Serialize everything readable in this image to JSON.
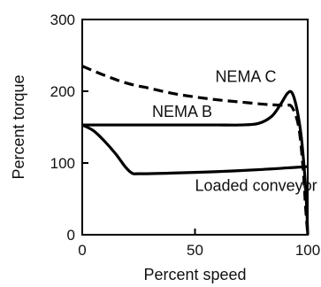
{
  "chart_data": {
    "type": "line",
    "xlabel": "Percent speed",
    "ylabel": "Percent torque",
    "xlim": [
      0,
      100
    ],
    "ylim": [
      0,
      300
    ],
    "x_ticks": [
      0,
      50,
      100
    ],
    "y_ticks": [
      0,
      100,
      200,
      300
    ],
    "grid": false,
    "legend": "none",
    "series": [
      {
        "key": "nema-c",
        "name": "NEMA C",
        "style": "dashed",
        "color": "#000000",
        "x": [
          0,
          10,
          20,
          30,
          40,
          50,
          60,
          70,
          80,
          85,
          90,
          93,
          96,
          98,
          99,
          100
        ],
        "y": [
          235,
          222,
          211,
          204,
          197,
          192,
          188,
          185,
          182,
          181,
          180,
          178,
          150,
          90,
          40,
          0
        ]
      },
      {
        "key": "nema-b",
        "name": "NEMA B",
        "style": "solid",
        "color": "#000000",
        "x": [
          0,
          10,
          20,
          30,
          40,
          50,
          60,
          70,
          78,
          84,
          88,
          91,
          93,
          95,
          97,
          98.5,
          99.5,
          100
        ],
        "y": [
          153,
          153,
          153,
          153,
          153,
          153,
          153,
          153,
          155,
          165,
          182,
          197,
          198,
          178,
          140,
          90,
          40,
          0
        ]
      },
      {
        "key": "loaded-conveyor",
        "name": "Loaded conveyor",
        "style": "solid",
        "color": "#000000",
        "x": [
          0,
          5,
          10,
          15,
          19,
          22,
          25,
          40,
          60,
          80,
          95,
          100
        ],
        "y": [
          153,
          145,
          130,
          112,
          95,
          86,
          85,
          86,
          88,
          91,
          94,
          95
        ]
      }
    ],
    "annotations": [
      {
        "key": "nema-c",
        "text": "NEMA C",
        "x": 59,
        "y": 213
      },
      {
        "key": "nema-b",
        "text": "NEMA B",
        "x": 31,
        "y": 164
      },
      {
        "key": "loaded-conveyor",
        "text": "Loaded conveyor",
        "x": 50,
        "y": 61
      }
    ]
  }
}
